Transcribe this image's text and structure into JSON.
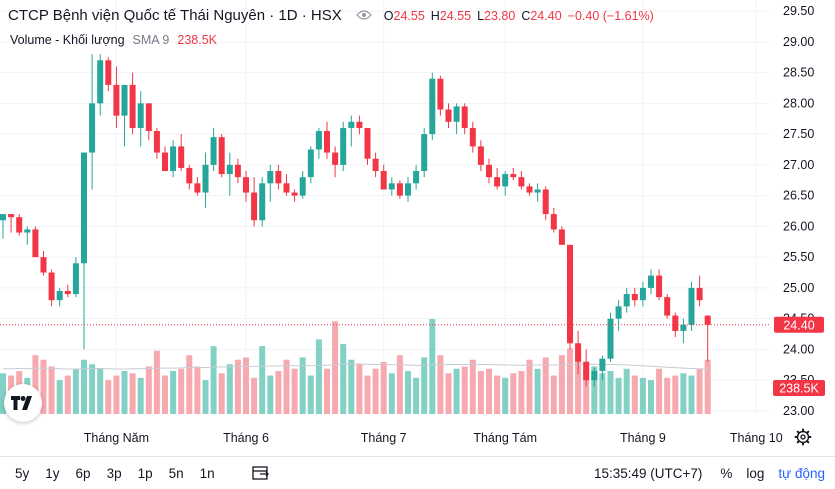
{
  "chart_data": {
    "type": "candlestick",
    "title": "CTCP Bệnh viện Quốc tế Thái Nguyên · 1D · HSX",
    "ohlc_legend": {
      "o_label": "O",
      "o": "24.55",
      "h_label": "H",
      "h": "24.55",
      "l_label": "L",
      "l": "23.80",
      "c_label": "C",
      "c": "24.40",
      "change": "−0.40 (−1.61%)"
    },
    "volume_legend": {
      "name": "Volume - Khối lượng",
      "indicator": "SMA 9",
      "value": "238.5K"
    },
    "y_axis": {
      "ticks": [
        "29.50",
        "29.00",
        "28.50",
        "28.00",
        "27.50",
        "27.00",
        "26.50",
        "26.00",
        "25.50",
        "25.00",
        "24.50",
        "24.00",
        "23.50",
        "23.00"
      ],
      "range": [
        22.95,
        29.55
      ]
    },
    "x_axis": {
      "ticks": [
        "Tháng Năm",
        "Tháng 6",
        "Tháng 7",
        "Tháng Tám",
        "Tháng 9",
        "Tháng 10"
      ]
    },
    "last_price": "24.40",
    "last_volume": "238.5K",
    "candles": [
      [
        26.1,
        26.2,
        25.8,
        26.2
      ],
      [
        26.2,
        26.2,
        25.9,
        26.15
      ],
      [
        26.15,
        26.2,
        25.85,
        25.9
      ],
      [
        25.9,
        26.0,
        25.7,
        25.95
      ],
      [
        25.95,
        26.0,
        25.5,
        25.5
      ],
      [
        25.5,
        25.6,
        25.2,
        25.25
      ],
      [
        25.25,
        25.3,
        24.7,
        24.8
      ],
      [
        24.8,
        25.0,
        24.7,
        24.95
      ],
      [
        24.95,
        25.05,
        24.85,
        24.9
      ],
      [
        24.9,
        25.5,
        24.85,
        25.4
      ],
      [
        25.4,
        27.2,
        24.0,
        27.2
      ],
      [
        27.2,
        28.8,
        26.6,
        28.0
      ],
      [
        28.0,
        28.8,
        27.8,
        28.7
      ],
      [
        28.7,
        28.75,
        28.2,
        28.3
      ],
      [
        28.3,
        28.6,
        27.6,
        27.8
      ],
      [
        27.8,
        28.3,
        27.3,
        28.3
      ],
      [
        28.3,
        28.5,
        27.5,
        27.6
      ],
      [
        27.6,
        28.2,
        27.3,
        28.0
      ],
      [
        28.0,
        28.0,
        27.4,
        27.55
      ],
      [
        27.55,
        27.6,
        27.1,
        27.2
      ],
      [
        27.2,
        27.3,
        26.9,
        26.9
      ],
      [
        26.9,
        27.4,
        26.8,
        27.3
      ],
      [
        27.3,
        27.5,
        26.9,
        26.95
      ],
      [
        26.95,
        27.0,
        26.6,
        26.7
      ],
      [
        26.7,
        26.8,
        26.5,
        26.55
      ],
      [
        26.55,
        27.2,
        26.3,
        27.0
      ],
      [
        27.0,
        27.6,
        26.9,
        27.45
      ],
      [
        27.45,
        27.5,
        26.8,
        26.85
      ],
      [
        26.85,
        27.2,
        26.5,
        27.0
      ],
      [
        27.0,
        27.1,
        26.7,
        26.8
      ],
      [
        26.8,
        26.9,
        26.4,
        26.55
      ],
      [
        26.55,
        26.8,
        26.0,
        26.1
      ],
      [
        26.1,
        26.8,
        26.0,
        26.7
      ],
      [
        26.7,
        27.0,
        26.4,
        26.9
      ],
      [
        26.9,
        27.0,
        26.6,
        26.7
      ],
      [
        26.7,
        26.85,
        26.5,
        26.55
      ],
      [
        26.55,
        26.6,
        26.4,
        26.5
      ],
      [
        26.5,
        26.9,
        26.45,
        26.8
      ],
      [
        26.8,
        27.3,
        26.7,
        27.25
      ],
      [
        27.25,
        27.6,
        27.1,
        27.55
      ],
      [
        27.55,
        27.7,
        27.1,
        27.2
      ],
      [
        27.2,
        27.3,
        26.8,
        27.0
      ],
      [
        27.0,
        27.7,
        26.9,
        27.6
      ],
      [
        27.6,
        27.8,
        27.3,
        27.7
      ],
      [
        27.7,
        27.8,
        27.5,
        27.6
      ],
      [
        27.6,
        27.6,
        27.0,
        27.1
      ],
      [
        27.1,
        27.2,
        26.8,
        26.9
      ],
      [
        26.9,
        27.0,
        26.6,
        26.6
      ],
      [
        26.6,
        26.8,
        26.5,
        26.7
      ],
      [
        26.7,
        26.75,
        26.45,
        26.5
      ],
      [
        26.5,
        26.8,
        26.4,
        26.7
      ],
      [
        26.7,
        27.0,
        26.6,
        26.9
      ],
      [
        26.9,
        27.6,
        26.8,
        27.5
      ],
      [
        27.5,
        28.5,
        27.4,
        28.4
      ],
      [
        28.4,
        28.45,
        27.8,
        27.9
      ],
      [
        27.9,
        28.0,
        27.6,
        27.7
      ],
      [
        27.7,
        28.0,
        27.5,
        27.95
      ],
      [
        27.95,
        28.0,
        27.5,
        27.6
      ],
      [
        27.6,
        27.7,
        27.2,
        27.3
      ],
      [
        27.3,
        27.4,
        26.9,
        27.0
      ],
      [
        27.0,
        27.1,
        26.7,
        26.8
      ],
      [
        26.8,
        26.95,
        26.6,
        26.65
      ],
      [
        26.65,
        26.9,
        26.5,
        26.85
      ],
      [
        26.85,
        26.95,
        26.75,
        26.8
      ],
      [
        26.8,
        26.9,
        26.6,
        26.65
      ],
      [
        26.65,
        26.7,
        26.5,
        26.55
      ],
      [
        26.55,
        26.7,
        26.4,
        26.6
      ],
      [
        26.6,
        26.65,
        26.1,
        26.2
      ],
      [
        26.2,
        26.3,
        25.9,
        25.95
      ],
      [
        25.95,
        26.0,
        25.7,
        25.7
      ],
      [
        25.7,
        25.7,
        24.0,
        24.1
      ],
      [
        24.1,
        24.3,
        23.6,
        23.8
      ],
      [
        23.8,
        24.0,
        23.4,
        23.5
      ],
      [
        23.5,
        23.7,
        23.4,
        23.65
      ],
      [
        23.65,
        23.9,
        23.5,
        23.85
      ],
      [
        23.85,
        24.6,
        23.8,
        24.5
      ],
      [
        24.5,
        24.8,
        24.3,
        24.7
      ],
      [
        24.7,
        25.0,
        24.6,
        24.9
      ],
      [
        24.9,
        25.0,
        24.7,
        24.8
      ],
      [
        24.8,
        25.1,
        24.7,
        25.0
      ],
      [
        25.0,
        25.3,
        24.9,
        25.2
      ],
      [
        25.2,
        25.3,
        24.8,
        24.85
      ],
      [
        24.85,
        24.9,
        24.5,
        24.55
      ],
      [
        24.55,
        24.6,
        24.2,
        24.3
      ],
      [
        24.3,
        24.5,
        24.1,
        24.4
      ],
      [
        24.4,
        25.1,
        24.3,
        25.0
      ],
      [
        25.0,
        25.2,
        24.7,
        24.8
      ],
      [
        24.55,
        24.55,
        23.8,
        24.4
      ]
    ],
    "volume_k": [
      180,
      170,
      190,
      160,
      260,
      240,
      210,
      150,
      170,
      200,
      240,
      220,
      200,
      150,
      170,
      190,
      180,
      160,
      210,
      280,
      170,
      190,
      200,
      260,
      210,
      150,
      300,
      180,
      220,
      240,
      250,
      160,
      300,
      170,
      190,
      240,
      200,
      250,
      170,
      330,
      200,
      410,
      310,
      240,
      220,
      170,
      200,
      230,
      180,
      260,
      190,
      160,
      250,
      420,
      260,
      180,
      200,
      210,
      240,
      190,
      200,
      170,
      160,
      180,
      190,
      240,
      200,
      250,
      170,
      260,
      290,
      270,
      200,
      210,
      180,
      190,
      160,
      200,
      170,
      160,
      150,
      200,
      160,
      170,
      180,
      170,
      200,
      240
    ],
    "volume_sma_k": [
      200,
      200,
      201,
      200,
      203,
      203,
      202,
      200,
      199,
      199,
      200,
      201,
      201,
      200,
      199,
      199,
      200,
      200,
      201,
      203,
      203,
      203,
      204,
      206,
      206,
      205,
      208,
      208,
      209,
      210,
      211,
      210,
      212,
      212,
      212,
      213,
      213,
      214,
      213,
      215,
      215,
      218,
      220,
      221,
      221,
      220,
      219,
      219,
      218,
      218,
      216,
      215,
      215,
      218,
      219,
      219,
      219,
      219,
      220,
      219,
      219,
      218,
      217,
      216,
      215,
      216,
      216,
      217,
      216,
      217,
      219,
      220,
      220,
      220,
      220,
      219,
      218,
      217,
      215,
      213,
      211,
      209,
      207,
      205,
      203,
      201,
      200,
      199
    ]
  },
  "ui": {
    "bottom_bar": {
      "timeframes": [
        "5y",
        "1y",
        "6p",
        "3p",
        "1p",
        "5n",
        "1n"
      ],
      "time": "15:35:49 (UTC+7)",
      "percent": "%",
      "log": "log",
      "auto": "tự động"
    },
    "colors": {
      "up": "#26a69a",
      "down": "#f23645",
      "up_vol": "#82d1c4",
      "down_vol": "#f7a9b0",
      "accent": "#2962ff"
    },
    "icons": [
      "eye-icon",
      "settings-gear-icon",
      "compare-dates-icon",
      "tradingview-logo"
    ]
  }
}
